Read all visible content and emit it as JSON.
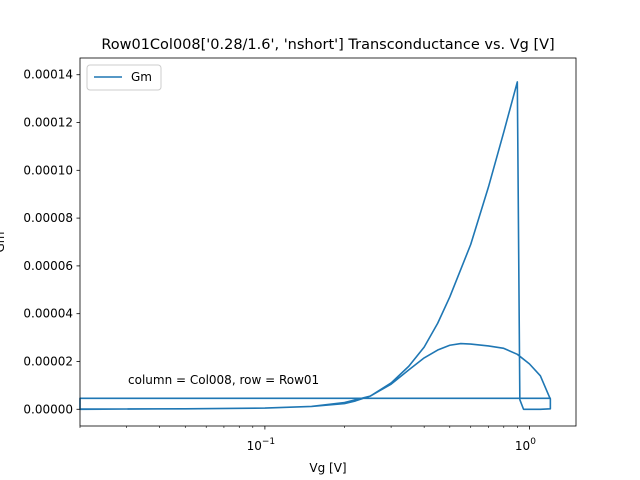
{
  "chart_data": {
    "type": "line",
    "title": "Row01Col008['0.28/1.6', 'nshort'] Transconductance vs. Vg [V]",
    "xlabel": "Vg [V]",
    "ylabel": "Gm",
    "xscale": "log",
    "xlim": [
      0.02,
      1.5
    ],
    "ylim": [
      -7e-06,
      0.000147
    ],
    "legend": {
      "location": "top-left",
      "entries": [
        "Gm"
      ]
    },
    "grid": false,
    "annotation": "column = Col008, row = Row01",
    "colors": {
      "series": "#1f77b4"
    },
    "x_ticks": [
      {
        "value": 0.1,
        "label": "10",
        "exp": "−1"
      },
      {
        "value": 1.0,
        "label": "10",
        "exp": "0"
      }
    ],
    "y_ticks": [
      {
        "value": 0,
        "label": "0.00000"
      },
      {
        "value": 2e-05,
        "label": "0.00002"
      },
      {
        "value": 4e-05,
        "label": "0.00004"
      },
      {
        "value": 6e-05,
        "label": "0.00006"
      },
      {
        "value": 8e-05,
        "label": "0.00008"
      },
      {
        "value": 0.0001,
        "label": "0.00010"
      },
      {
        "value": 0.00012,
        "label": "0.00012"
      },
      {
        "value": 0.00014,
        "label": "0.00014"
      }
    ],
    "series": [
      {
        "name": "Gm",
        "points": [
          [
            0.02,
            0.0
          ],
          [
            0.05,
            2e-07
          ],
          [
            0.1,
            5e-07
          ],
          [
            0.15,
            1.2e-06
          ],
          [
            0.2,
            2.8e-06
          ],
          [
            0.25,
            5.5e-06
          ],
          [
            0.3,
            1.1e-05
          ],
          [
            0.35,
            1.8e-05
          ],
          [
            0.4,
            2.6e-05
          ],
          [
            0.45,
            3.6e-05
          ],
          [
            0.5,
            4.7e-05
          ],
          [
            0.6,
            6.9e-05
          ],
          [
            0.7,
            9.3e-05
          ],
          [
            0.8,
            0.000116
          ],
          [
            0.9,
            0.000137
          ],
          [
            0.92,
            4e-06
          ],
          [
            0.95,
            0.0
          ],
          [
            1.0,
            0.0
          ],
          [
            1.1,
            0.0
          ],
          [
            1.2,
            2e-07
          ],
          [
            1.2,
            4.2e-06
          ],
          [
            1.1,
            1.4e-05
          ],
          [
            1.0,
            1.9e-05
          ],
          [
            0.9,
            2.3e-05
          ],
          [
            0.8,
            2.55e-05
          ],
          [
            0.7,
            2.65e-05
          ],
          [
            0.6,
            2.73e-05
          ],
          [
            0.55,
            2.75e-05
          ],
          [
            0.5,
            2.68e-05
          ],
          [
            0.45,
            2.48e-05
          ],
          [
            0.4,
            2.15e-05
          ],
          [
            0.35,
            1.65e-05
          ],
          [
            0.3,
            1.05e-05
          ],
          [
            0.25,
            5.5e-06
          ],
          [
            0.22,
            3.5e-06
          ],
          [
            0.2,
            2.4e-06
          ],
          [
            0.15,
            1.2e-06
          ],
          [
            0.1,
            5e-07
          ],
          [
            0.05,
            2e-07
          ],
          [
            0.02,
            1e-07
          ],
          [
            0.02,
            4.6e-06
          ],
          [
            1.2,
            4.6e-06
          ]
        ]
      }
    ]
  }
}
